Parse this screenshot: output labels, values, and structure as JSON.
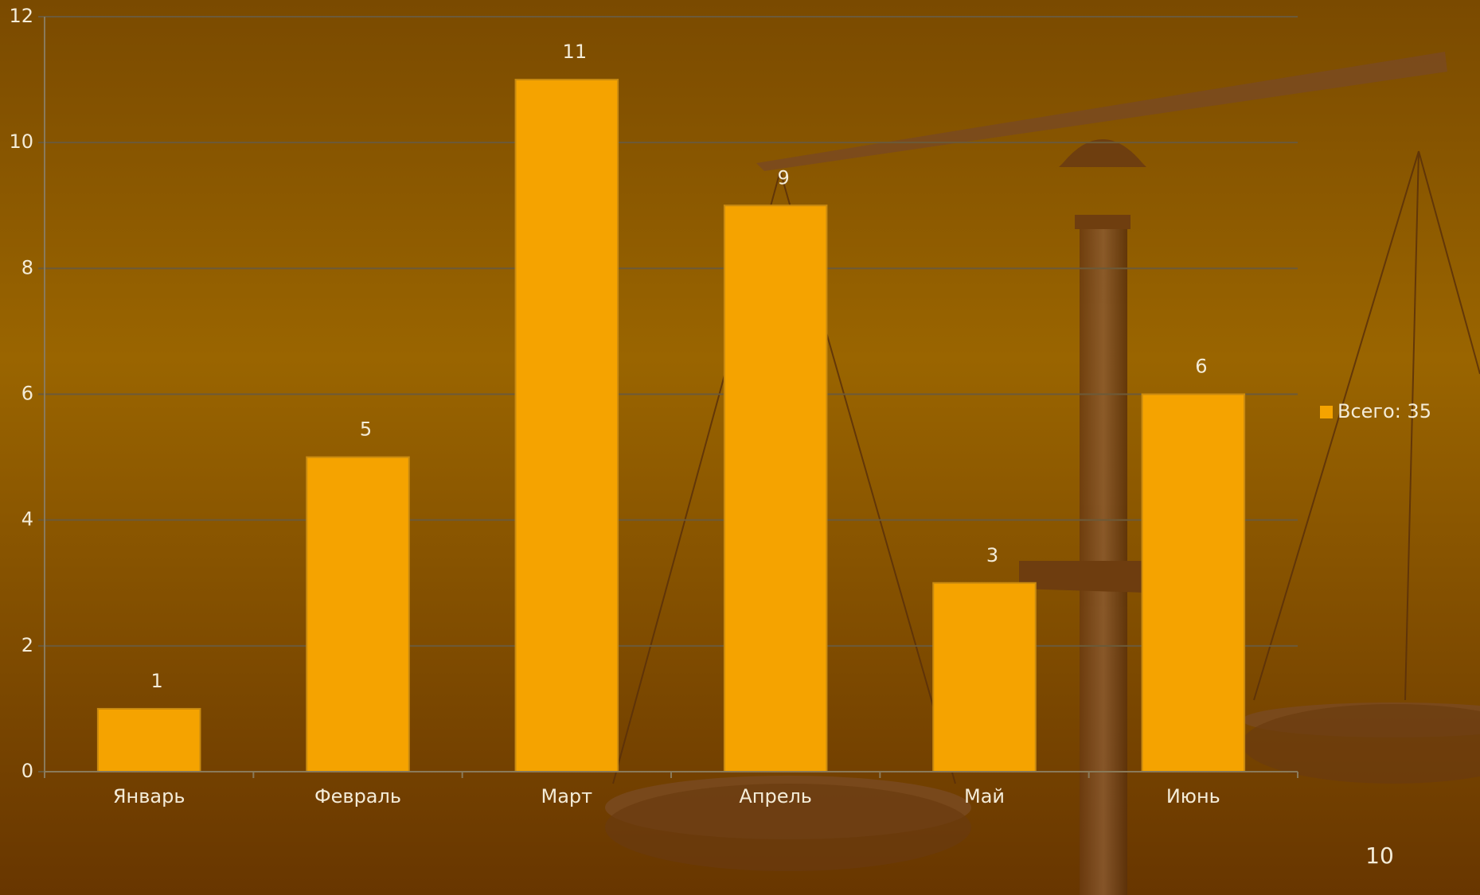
{
  "chart_data": {
    "type": "bar",
    "categories": [
      "Январь",
      "Февраль",
      "Март",
      "Апрель",
      "Май",
      "Июнь"
    ],
    "series": [
      {
        "name": "Всего: 35",
        "color": "#f5a300",
        "values": [
          1,
          5,
          11,
          9,
          3,
          6
        ]
      }
    ],
    "ylim": [
      0,
      12
    ],
    "yticks": [
      0,
      2,
      4,
      6,
      8,
      10,
      12
    ],
    "grid": true,
    "data_labels": true,
    "legend": "right"
  },
  "slide_number": 10
}
